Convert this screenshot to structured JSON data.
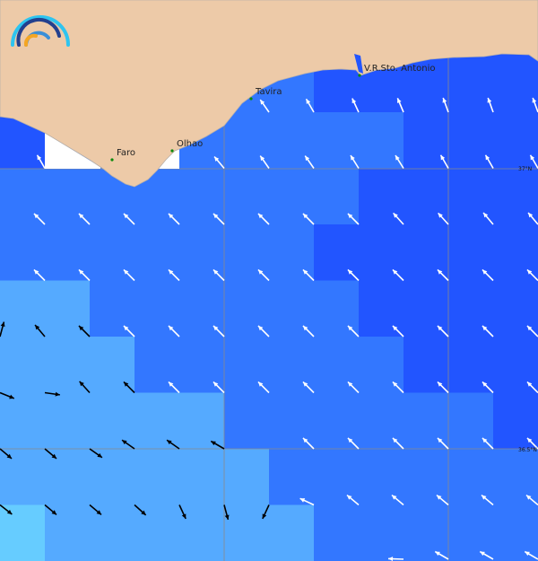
{
  "map": {
    "colors": {
      "levels": [
        "#2255ff",
        "#3377ff",
        "#55aaff",
        "#66ccff"
      ],
      "land": "#edcaa8",
      "coast": "#b9b0a8",
      "unmasked": "#ffffff",
      "grid": "#8a8a8a",
      "town": "#0a8a0a"
    },
    "cells": [
      [
        1,
        1,
        1,
        1,
        1,
        1,
        1,
        0,
        0,
        0,
        0,
        0
      ],
      [
        0,
        1,
        1,
        1,
        1,
        1,
        1,
        0,
        0,
        0,
        0,
        0
      ],
      [
        0,
        1,
        1,
        1,
        1,
        1,
        1,
        1,
        1,
        0,
        0,
        0
      ],
      [
        1,
        1,
        1,
        1,
        1,
        1,
        1,
        1,
        0,
        0,
        0,
        0
      ],
      [
        1,
        1,
        1,
        1,
        1,
        1,
        1,
        0,
        0,
        0,
        0,
        0
      ],
      [
        2,
        2,
        1,
        1,
        1,
        1,
        1,
        1,
        0,
        0,
        0,
        0
      ],
      [
        2,
        2,
        2,
        1,
        1,
        1,
        1,
        1,
        1,
        0,
        0,
        0
      ],
      [
        2,
        2,
        2,
        2,
        2,
        1,
        1,
        1,
        1,
        1,
        1,
        0
      ],
      [
        2,
        2,
        2,
        2,
        2,
        2,
        1,
        1,
        1,
        1,
        1,
        1
      ],
      [
        3,
        2,
        2,
        2,
        2,
        2,
        2,
        1,
        1,
        1,
        1,
        1
      ]
    ],
    "arrow_rows": [
      {
        "row": 2,
        "arrows": [
          null,
          null,
          null,
          null,
          null,
          null,
          [
            325,
            "w"
          ],
          [
            330,
            "w"
          ],
          [
            335,
            "w"
          ],
          [
            337,
            "w"
          ],
          [
            340,
            "w"
          ],
          [
            340,
            "w"
          ],
          [
            340,
            "w"
          ]
        ]
      },
      {
        "row": 3,
        "arrows": [
          null,
          [
            330,
            "w"
          ],
          null,
          null,
          null,
          [
            320,
            "w"
          ],
          [
            325,
            "w"
          ],
          [
            325,
            "w"
          ],
          [
            328,
            "w"
          ],
          [
            328,
            "w"
          ],
          [
            330,
            "w"
          ],
          [
            330,
            "w"
          ],
          [
            330,
            "w"
          ]
        ]
      },
      {
        "row": 4,
        "arrows": [
          null,
          [
            315,
            "w"
          ],
          [
            315,
            "w"
          ],
          [
            315,
            "w"
          ],
          [
            315,
            "w"
          ],
          [
            315,
            "w"
          ],
          [
            315,
            "w"
          ],
          [
            315,
            "w"
          ],
          [
            315,
            "w"
          ],
          [
            318,
            "w"
          ],
          [
            318,
            "w"
          ],
          [
            320,
            "w"
          ],
          [
            320,
            "w"
          ]
        ]
      },
      {
        "row": 5,
        "arrows": [
          null,
          [
            315,
            "w"
          ],
          [
            315,
            "w"
          ],
          [
            315,
            "w"
          ],
          [
            315,
            "w"
          ],
          [
            315,
            "w"
          ],
          [
            315,
            "w"
          ],
          [
            315,
            "w"
          ],
          [
            315,
            "w"
          ],
          [
            315,
            "w"
          ],
          [
            315,
            "w"
          ],
          [
            315,
            "w"
          ],
          [
            315,
            "w"
          ]
        ]
      },
      {
        "row": 6,
        "arrows": [
          [
            15,
            "k"
          ],
          [
            320,
            "k"
          ],
          [
            315,
            "k"
          ],
          [
            315,
            "w"
          ],
          [
            315,
            "w"
          ],
          [
            315,
            "w"
          ],
          [
            315,
            "w"
          ],
          [
            315,
            "w"
          ],
          [
            315,
            "w"
          ],
          [
            315,
            "w"
          ],
          [
            315,
            "w"
          ],
          [
            315,
            "w"
          ],
          [
            315,
            "w"
          ]
        ]
      },
      {
        "row": 7,
        "arrows": [
          [
            112,
            "k"
          ],
          [
            98,
            "k"
          ],
          [
            318,
            "k"
          ],
          [
            315,
            "k"
          ],
          [
            315,
            "w"
          ],
          [
            315,
            "w"
          ],
          [
            315,
            "w"
          ],
          [
            315,
            "w"
          ],
          [
            315,
            "w"
          ],
          [
            315,
            "w"
          ],
          [
            315,
            "w"
          ],
          [
            315,
            "w"
          ],
          [
            315,
            "w"
          ]
        ]
      },
      {
        "row": 8,
        "arrows": [
          [
            130,
            "k"
          ],
          [
            130,
            "k"
          ],
          [
            125,
            "k"
          ],
          [
            305,
            "k"
          ],
          [
            305,
            "k"
          ],
          [
            300,
            "k"
          ],
          null,
          [
            315,
            "w"
          ],
          [
            315,
            "w"
          ],
          [
            315,
            "w"
          ],
          [
            315,
            "w"
          ],
          [
            315,
            "w"
          ],
          [
            315,
            "w"
          ]
        ]
      },
      {
        "row": 9,
        "arrows": [
          [
            128,
            "k"
          ],
          [
            130,
            "k"
          ],
          [
            130,
            "k"
          ],
          [
            132,
            "k"
          ],
          [
            155,
            "k"
          ],
          [
            165,
            "k"
          ],
          [
            205,
            "k"
          ],
          [
            295,
            "w"
          ],
          [
            310,
            "w"
          ],
          [
            310,
            "w"
          ],
          [
            310,
            "w"
          ],
          [
            310,
            "w"
          ],
          [
            310,
            "w"
          ]
        ]
      },
      {
        "row": 10,
        "arrows": [
          null,
          null,
          null,
          null,
          null,
          null,
          null,
          null,
          null,
          [
            272,
            "w"
          ],
          [
            300,
            "w"
          ],
          [
            300,
            "w"
          ],
          [
            300,
            "w"
          ]
        ]
      }
    ],
    "towns": [
      {
        "name": "Faro"
      },
      {
        "name": "Olhao"
      },
      {
        "name": "Tavira"
      },
      {
        "name": "V.R.Sto. Antonio"
      }
    ],
    "latitude_labels": [
      "37°N",
      "36.5°N"
    ],
    "logo": "wave-arcs-logo"
  }
}
